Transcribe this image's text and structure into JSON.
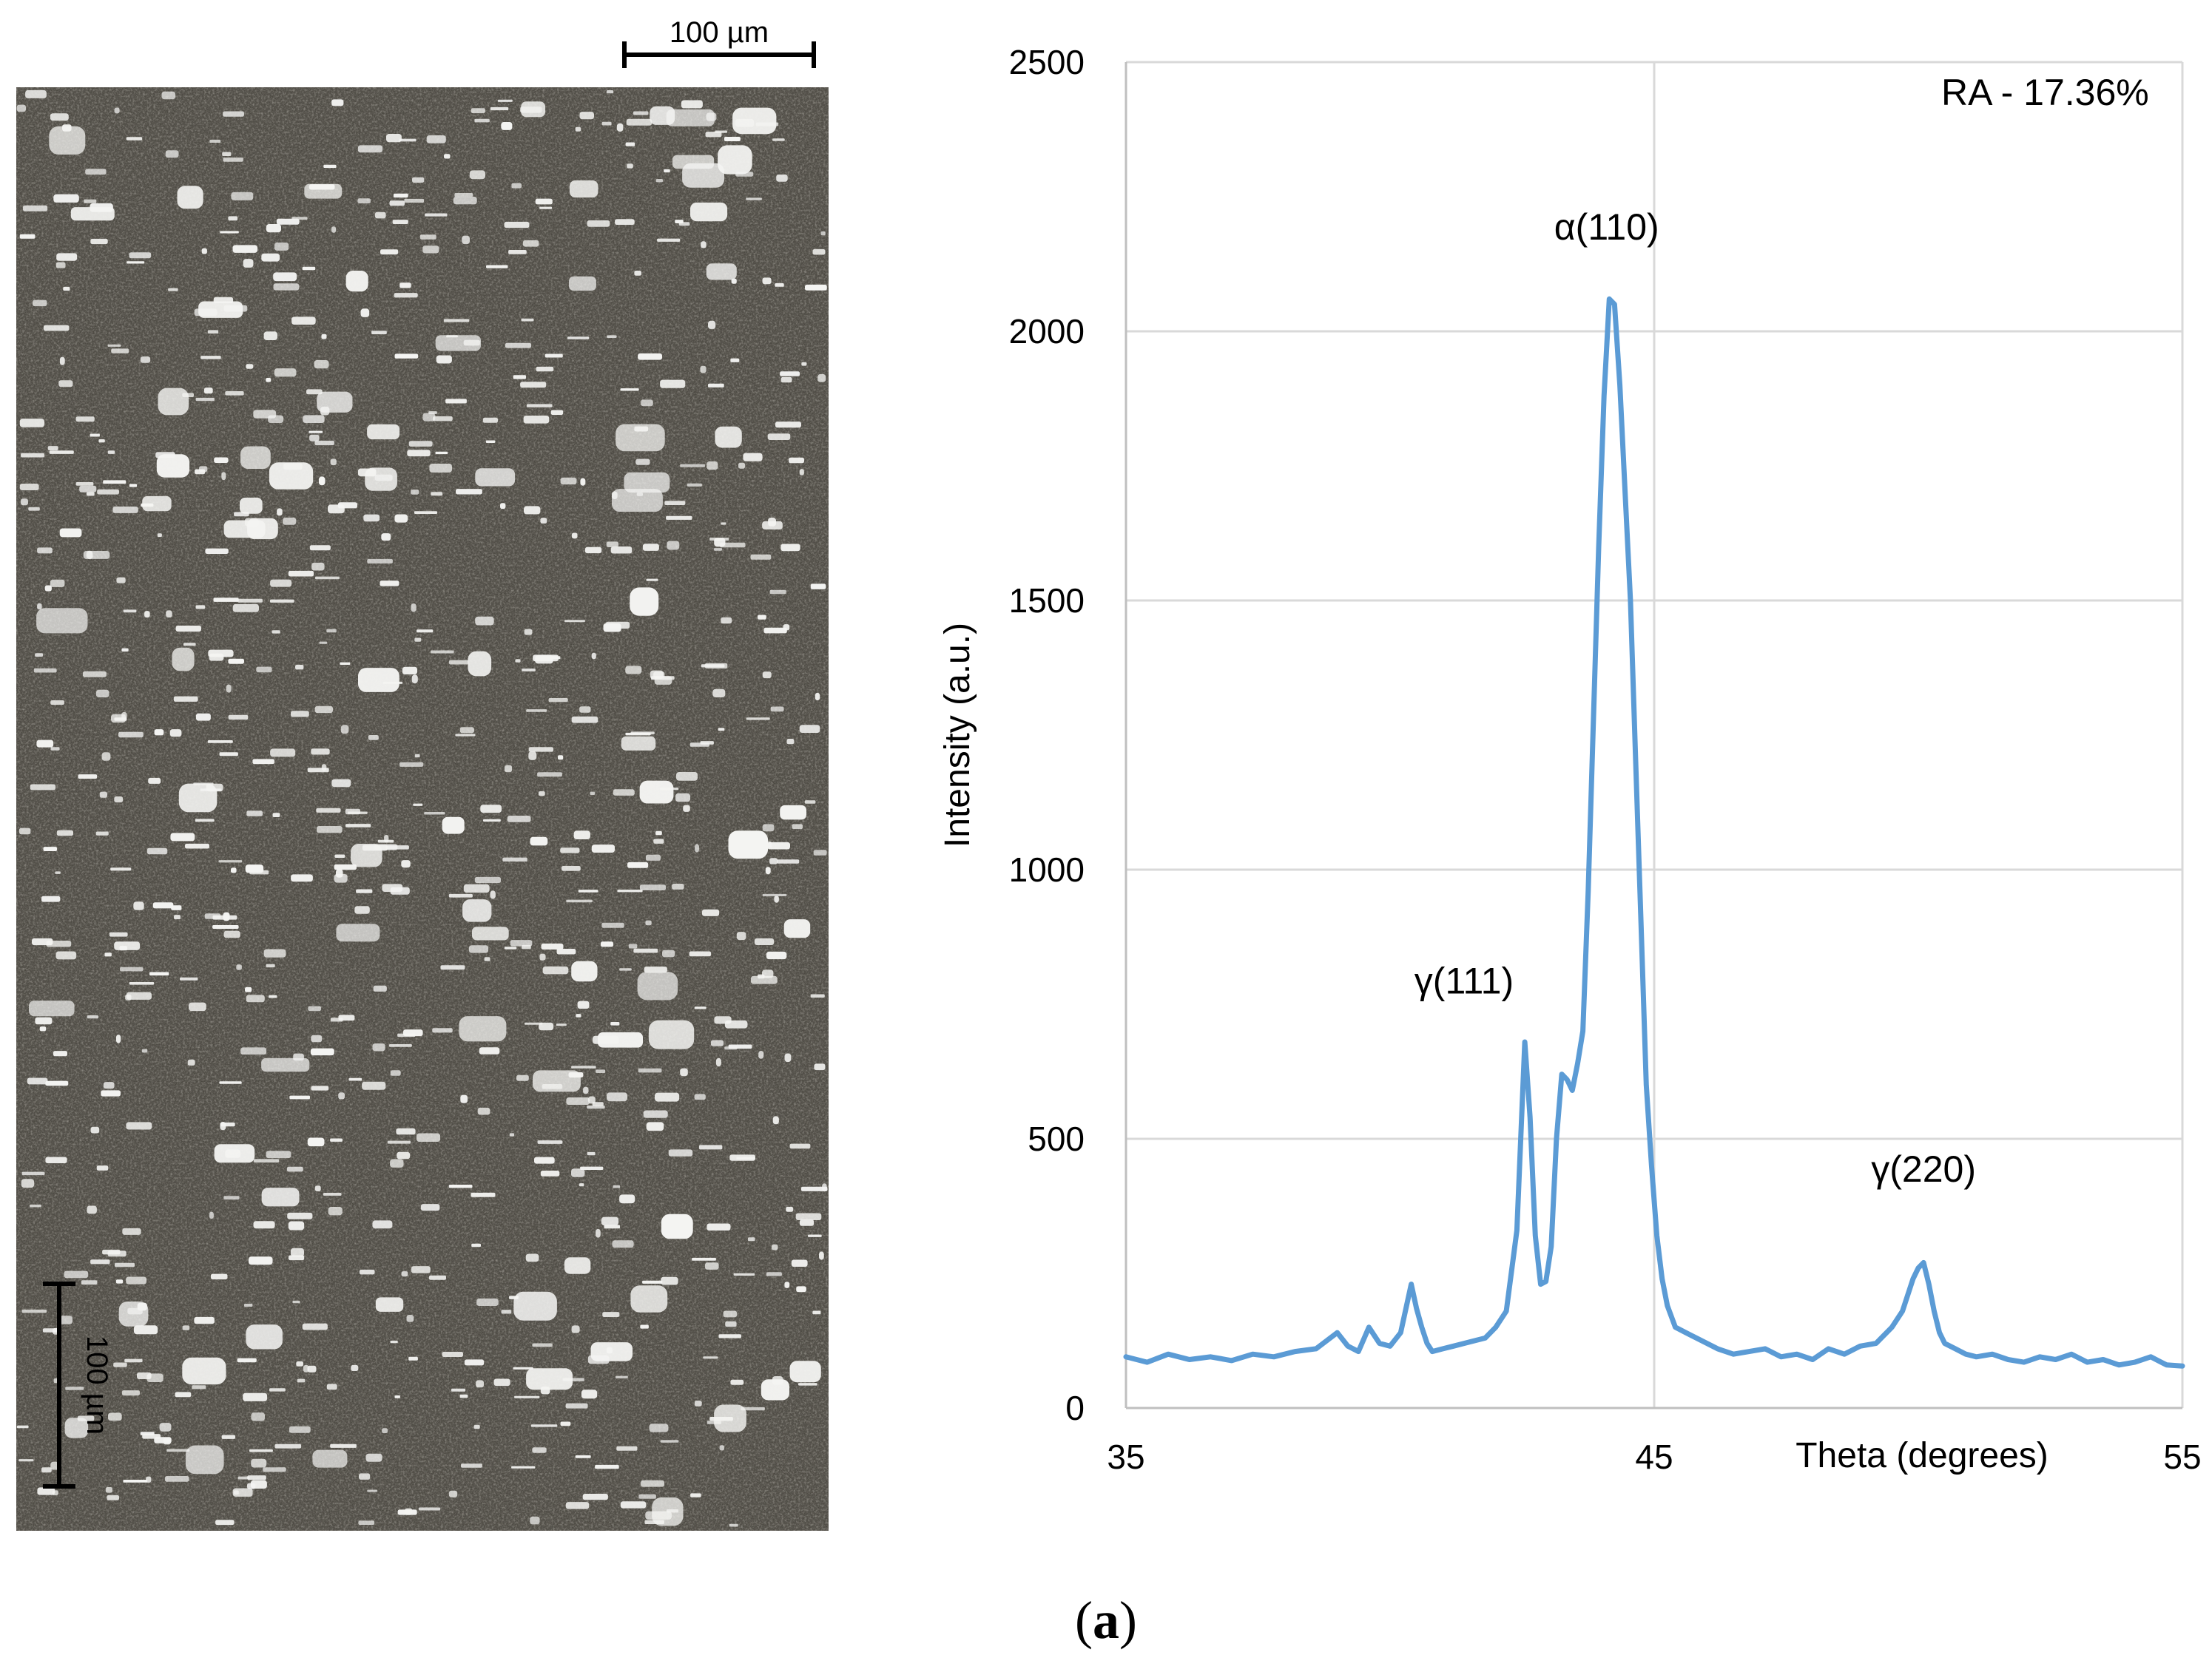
{
  "micrograph": {
    "scalebar_label_top": "100 µm",
    "scalebar_label_inset": "100 µm",
    "background_color": "#4a4740",
    "grain_color": "#f4f4f2"
  },
  "caption": {
    "open": "(",
    "letter": "a",
    "close": ")"
  },
  "chart_data": {
    "type": "line",
    "title": "",
    "xlabel": "Theta (degrees)",
    "ylabel": "Intensity (a.u.)",
    "xlim": [
      35,
      55
    ],
    "ylim": [
      0,
      2500
    ],
    "x_ticks": [
      35,
      45,
      55
    ],
    "y_ticks": [
      0,
      500,
      1000,
      1500,
      2000,
      2500
    ],
    "grid": true,
    "line_color": "#5b9bd5",
    "annotations": [
      {
        "text": "RA - 17.36%",
        "x": 52.4,
        "y": 2420
      },
      {
        "text": "α(110)",
        "x": 44.1,
        "y": 2170
      },
      {
        "text": "γ(111)",
        "x": 41.4,
        "y": 770
      },
      {
        "text": "γ(220)",
        "x": 50.1,
        "y": 420
      }
    ],
    "series": [
      {
        "x": [
          35.0,
          35.4,
          35.8,
          36.2,
          36.6,
          37.0,
          37.4,
          37.8,
          38.2,
          38.6,
          39.0,
          39.2,
          39.4,
          39.6,
          39.8,
          40.0,
          40.2,
          40.4,
          40.5,
          40.6,
          40.7,
          40.8,
          41.0,
          41.2,
          41.4,
          41.6,
          41.8,
          42.0,
          42.2,
          42.4,
          42.55,
          42.65,
          42.75,
          42.85,
          42.95,
          43.05,
          43.15,
          43.25,
          43.35,
          43.45,
          43.55,
          43.65,
          43.75,
          43.85,
          43.95,
          44.05,
          44.15,
          44.25,
          44.35,
          44.45,
          44.55,
          44.65,
          44.75,
          44.85,
          44.95,
          45.05,
          45.15,
          45.25,
          45.4,
          45.6,
          45.8,
          46.0,
          46.2,
          46.5,
          46.8,
          47.1,
          47.4,
          47.7,
          48.0,
          48.3,
          48.6,
          48.9,
          49.2,
          49.5,
          49.7,
          49.9,
          50.0,
          50.1,
          50.2,
          50.3,
          50.4,
          50.5,
          50.7,
          50.9,
          51.1,
          51.4,
          51.7,
          52.0,
          52.3,
          52.6,
          52.9,
          53.2,
          53.5,
          53.8,
          54.1,
          54.4,
          54.7,
          55.0
        ],
        "y": [
          95,
          85,
          100,
          90,
          95,
          88,
          100,
          95,
          105,
          110,
          140,
          115,
          105,
          150,
          120,
          115,
          140,
          230,
          185,
          150,
          120,
          105,
          110,
          115,
          120,
          125,
          130,
          150,
          180,
          330,
          680,
          540,
          320,
          230,
          235,
          300,
          500,
          620,
          610,
          590,
          640,
          700,
          960,
          1280,
          1600,
          1880,
          2060,
          2050,
          1900,
          1700,
          1500,
          1200,
          900,
          600,
          450,
          320,
          240,
          190,
          150,
          140,
          130,
          120,
          110,
          100,
          105,
          110,
          95,
          100,
          90,
          110,
          100,
          115,
          120,
          150,
          180,
          240,
          260,
          270,
          230,
          180,
          140,
          120,
          110,
          100,
          95,
          100,
          90,
          85,
          95,
          90,
          100,
          85,
          90,
          80,
          85,
          95,
          80,
          78
        ]
      }
    ]
  }
}
